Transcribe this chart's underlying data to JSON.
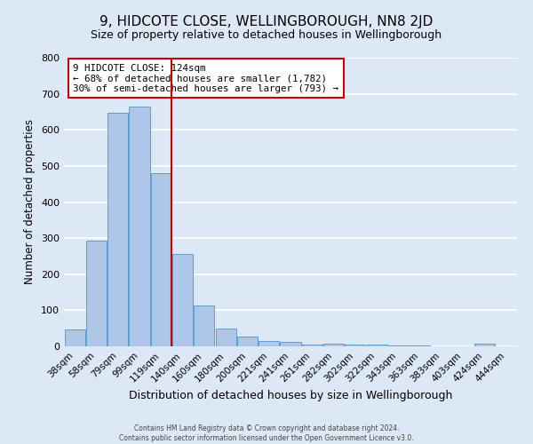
{
  "title": "9, HIDCOTE CLOSE, WELLINGBOROUGH, NN8 2JD",
  "subtitle": "Size of property relative to detached houses in Wellingborough",
  "xlabel": "Distribution of detached houses by size in Wellingborough",
  "ylabel": "Number of detached properties",
  "bar_labels": [
    "38sqm",
    "58sqm",
    "79sqm",
    "99sqm",
    "119sqm",
    "140sqm",
    "160sqm",
    "180sqm",
    "200sqm",
    "221sqm",
    "241sqm",
    "261sqm",
    "282sqm",
    "302sqm",
    "322sqm",
    "343sqm",
    "363sqm",
    "383sqm",
    "403sqm",
    "424sqm",
    "444sqm"
  ],
  "bar_values": [
    47,
    293,
    648,
    665,
    480,
    255,
    114,
    49,
    27,
    15,
    13,
    5,
    8,
    5,
    4,
    3,
    3,
    1,
    0,
    7,
    1
  ],
  "bar_color": "#aec6e8",
  "bar_edge_color": "#5a9fd4",
  "vline_color": "#cc0000",
  "vline_x_index": 4,
  "annotation_title": "9 HIDCOTE CLOSE: 124sqm",
  "annotation_line1": "← 68% of detached houses are smaller (1,782)",
  "annotation_line2": "30% of semi-detached houses are larger (793) →",
  "annotation_box_color": "#ffffff",
  "annotation_box_edge": "#cc0000",
  "footer_line1": "Contains HM Land Registry data © Crown copyright and database right 2024.",
  "footer_line2": "Contains public sector information licensed under the Open Government Licence v3.0.",
  "ylim": [
    0,
    800
  ],
  "yticks": [
    0,
    100,
    200,
    300,
    400,
    500,
    600,
    700,
    800
  ],
  "background_color": "#dce8f5",
  "plot_bg_color": "#dce8f5",
  "grid_color": "#ffffff",
  "title_fontsize": 11,
  "subtitle_fontsize": 9
}
